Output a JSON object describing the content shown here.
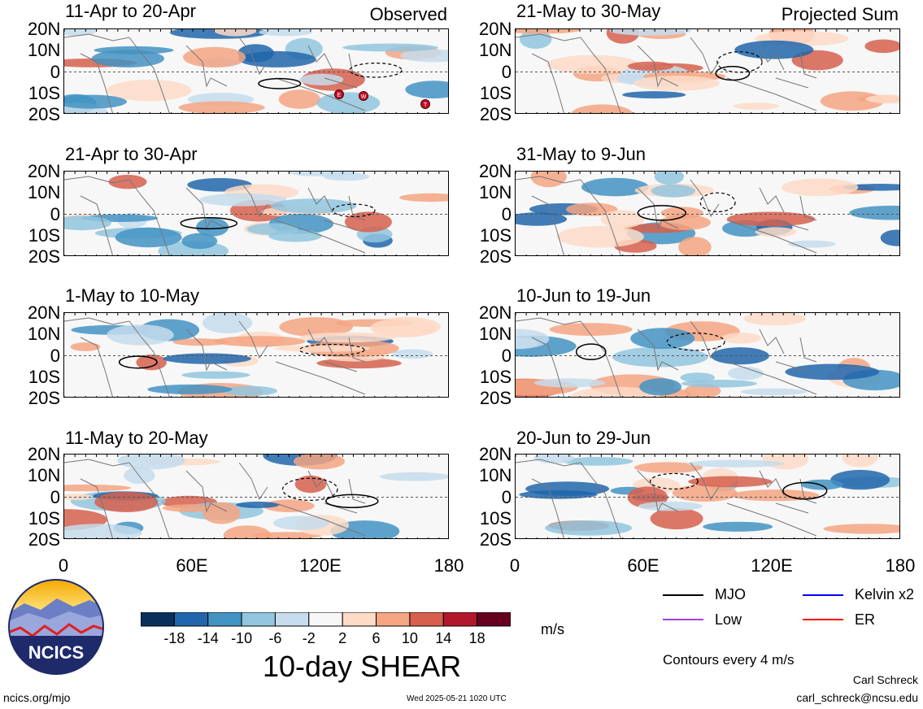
{
  "panels": [
    {
      "title": "11-Apr to 20-Apr",
      "tag": "Observed",
      "markers": [
        "E",
        "W",
        "T"
      ]
    },
    {
      "title": "21-Apr to 30-Apr",
      "tag": ""
    },
    {
      "title": "1-May to 10-May",
      "tag": ""
    },
    {
      "title": "11-May to 20-May",
      "tag": ""
    },
    {
      "title": "21-May to 30-May",
      "tag": "Projected Sum"
    },
    {
      "title": "31-May to 9-Jun",
      "tag": ""
    },
    {
      "title": "10-Jun to 19-Jun",
      "tag": ""
    },
    {
      "title": "20-Jun to 29-Jun",
      "tag": ""
    }
  ],
  "lat_labels": [
    "20N",
    "10N",
    "0",
    "10S",
    "20S"
  ],
  "lon_labels": [
    "0",
    "60E",
    "120E",
    "180"
  ],
  "colorbar": {
    "ticks": [
      "-18",
      "-14",
      "-10",
      "-6",
      "-2",
      "2",
      "6",
      "10",
      "14",
      "18"
    ],
    "unit": "m/s",
    "colors": [
      "#0b2f5b",
      "#2166ac",
      "#4393c3",
      "#92c5de",
      "#c6dcec",
      "#f7f7f7",
      "#fddbc7",
      "#f4a582",
      "#d6604d",
      "#b2182b",
      "#67001f"
    ]
  },
  "main_title": "10-day SHEAR",
  "legend": {
    "items": [
      {
        "label": "MJO",
        "color": "#000000"
      },
      {
        "label": "Kelvin x2",
        "color": "#0000ff"
      },
      {
        "label": "Low",
        "color": "#a040e0"
      },
      {
        "label": "ER",
        "color": "#ff0000"
      }
    ],
    "note": "Contours every 4 m/s"
  },
  "logo": {
    "text": "NCICS"
  },
  "footer": {
    "left": "ncics.org/mjo",
    "center": "Wed 2025-05-21 1020 UTC",
    "author": "Carl Schreck",
    "email": "carl_schreck@ncsu.edu"
  }
}
